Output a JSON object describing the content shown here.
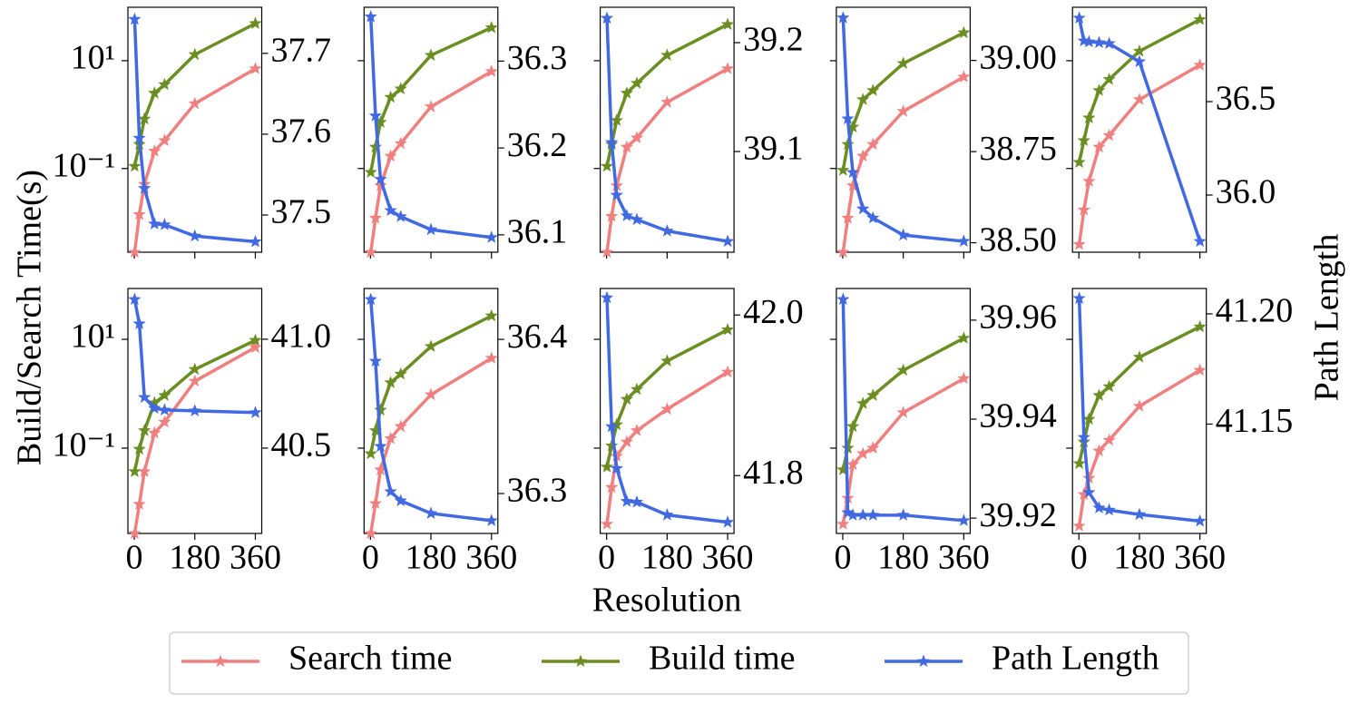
{
  "figure": {
    "xlabel": "Resolution",
    "ylabel": "Build/Search Time(s)",
    "y2label": "Path Length"
  },
  "chart_data": [
    {
      "type": "line",
      "x": [
        1,
        15,
        30,
        60,
        90,
        180,
        360
      ],
      "xlim": [
        -19,
        379
      ],
      "xticks": [
        0,
        180,
        360
      ],
      "yscale": "log",
      "ylim": [
        0.0028,
        98
      ],
      "yticks": [
        {
          "value": 0.1,
          "label": "10⁻¹"
        },
        {
          "value": 10,
          "label": "10¹"
        }
      ],
      "y2lim": [
        37.454,
        37.757
      ],
      "y2ticks": [
        37.5,
        37.6,
        37.7
      ],
      "series": [
        {
          "name": "Search time",
          "color": "#f08080",
          "values": [
            0.0028,
            0.014,
            0.051,
            0.21,
            0.33,
            1.6,
            7.1
          ]
        },
        {
          "name": "Build time",
          "color": "#6b8e23",
          "values": [
            0.11,
            0.28,
            0.83,
            2.5,
            3.6,
            13,
            49
          ]
        },
        {
          "name": "Path Length",
          "color": "#4169e1",
          "axis": "y2",
          "values": [
            37.742,
            37.595,
            37.533,
            37.489,
            37.488,
            37.474,
            37.467
          ]
        }
      ]
    },
    {
      "type": "line",
      "x": [
        1,
        15,
        30,
        60,
        90,
        180,
        360
      ],
      "xlim": [
        -19,
        379
      ],
      "xticks": [
        0,
        180,
        360
      ],
      "yscale": "log",
      "ylim": [
        0.0028,
        98
      ],
      "yticks": [
        0.1,
        10
      ],
      "y2lim": [
        36.08,
        36.362
      ],
      "y2ticks": [
        36.1,
        36.2,
        36.3
      ],
      "series": [
        {
          "name": "Search time",
          "color": "#f08080",
          "values": [
            0.0028,
            0.012,
            0.048,
            0.17,
            0.29,
            1.4,
            6.3
          ]
        },
        {
          "name": "Build time",
          "color": "#6b8e23",
          "values": [
            0.085,
            0.25,
            0.72,
            2.1,
            3.0,
            12.6,
            41
          ]
        },
        {
          "name": "Path Length",
          "color": "#4169e1",
          "axis": "y2",
          "values": [
            36.351,
            36.237,
            36.164,
            36.128,
            36.121,
            36.106,
            36.097
          ]
        }
      ]
    },
    {
      "type": "line",
      "x": [
        1,
        15,
        30,
        60,
        90,
        180,
        360
      ],
      "xlim": [
        -19,
        379
      ],
      "xticks": [
        0,
        180,
        360
      ],
      "yscale": "log",
      "ylim": [
        0.0028,
        98
      ],
      "yticks": [
        0.1,
        10
      ],
      "y2lim": [
        39.0075,
        39.2325
      ],
      "y2ticks": [
        39.1,
        39.2
      ],
      "series": [
        {
          "name": "Search time",
          "color": "#f08080",
          "values": [
            0.0028,
            0.013,
            0.048,
            0.25,
            0.37,
            1.7,
            7.1
          ]
        },
        {
          "name": "Build time",
          "color": "#6b8e23",
          "values": [
            0.11,
            0.28,
            0.78,
            2.5,
            3.8,
            12.6,
            47
          ]
        },
        {
          "name": "Path Length",
          "color": "#4169e1",
          "axis": "y2",
          "values": [
            39.2225,
            39.1083,
            39.06,
            39.041,
            39.0375,
            39.027,
            39.0175
          ]
        }
      ]
    },
    {
      "type": "line",
      "x": [
        1,
        15,
        30,
        60,
        90,
        180,
        360
      ],
      "xlim": [
        -19,
        379
      ],
      "xticks": [
        0,
        180,
        360
      ],
      "yscale": "log",
      "ylim": [
        0.0028,
        98
      ],
      "yticks": [
        0.1,
        10
      ],
      "y2lim": [
        38.474,
        39.146
      ],
      "y2ticks": [
        {
          "value": 38.5,
          "label": "38.50"
        },
        38.75,
        {
          "value": 39,
          "label": "39.00"
        }
      ],
      "series": [
        {
          "name": "Search time",
          "color": "#f08080",
          "values": [
            0.0028,
            0.012,
            0.048,
            0.17,
            0.28,
            1.15,
            5.0
          ]
        },
        {
          "name": "Build time",
          "color": "#6b8e23",
          "values": [
            0.093,
            0.28,
            0.59,
            1.9,
            2.8,
            8.9,
            33
          ]
        },
        {
          "name": "Path Length",
          "color": "#4169e1",
          "axis": "y2",
          "values": [
            39.117,
            38.84,
            38.693,
            38.593,
            38.568,
            38.521,
            38.504
          ]
        }
      ]
    },
    {
      "type": "line",
      "x": [
        1,
        15,
        30,
        60,
        90,
        180,
        360
      ],
      "xlim": [
        -19,
        379
      ],
      "xticks": [
        0,
        180,
        360
      ],
      "yscale": "log",
      "ylim": [
        0.0028,
        98
      ],
      "yticks": [
        0.1,
        10
      ],
      "y2lim": [
        35.694,
        37.005
      ],
      "y2ticks": [
        {
          "value": 36,
          "label": "36.0"
        },
        36.5
      ],
      "series": [
        {
          "name": "Search time",
          "color": "#f08080",
          "values": [
            0.0039,
            0.017,
            0.058,
            0.25,
            0.41,
            1.9,
            8.3
          ]
        },
        {
          "name": "Build time",
          "color": "#6b8e23",
          "values": [
            0.13,
            0.33,
            0.87,
            2.8,
            4.5,
            15,
            58
          ]
        },
        {
          "name": "Path Length",
          "color": "#4169e1",
          "axis": "y2",
          "values": [
            36.947,
            36.825,
            36.82,
            36.816,
            36.811,
            36.714,
            35.752
          ]
        }
      ]
    },
    {
      "type": "line",
      "x": [
        1,
        15,
        30,
        60,
        90,
        180,
        360
      ],
      "xlim": [
        -19,
        379
      ],
      "xticks": [
        0,
        180,
        360
      ],
      "yscale": "log",
      "ylim": [
        0.0027,
        86
      ],
      "yticks": [
        {
          "value": 0.1,
          "label": "10⁻¹"
        },
        {
          "value": 10,
          "label": "10¹"
        }
      ],
      "y2lim": [
        40.108,
        41.233
      ],
      "y2ticks": [
        40.5,
        {
          "value": 41,
          "label": "41.0"
        }
      ],
      "series": [
        {
          "name": "Search time",
          "color": "#f08080",
          "values": [
            0.0027,
            0.0093,
            0.037,
            0.19,
            0.3,
            1.7,
            7.1
          ]
        },
        {
          "name": "Build time",
          "color": "#6b8e23",
          "values": [
            0.037,
            0.096,
            0.21,
            0.68,
            0.93,
            2.8,
            9.6
          ]
        },
        {
          "name": "Path Length",
          "color": "#4169e1",
          "axis": "y2",
          "values": [
            41.183,
            41.071,
            40.733,
            40.683,
            40.675,
            40.671,
            40.663
          ]
        }
      ]
    },
    {
      "type": "line",
      "x": [
        1,
        15,
        30,
        60,
        90,
        180,
        360
      ],
      "xlim": [
        -19,
        379
      ],
      "xticks": [
        0,
        180,
        360
      ],
      "yscale": "log",
      "ylim": [
        0.0027,
        86
      ],
      "yticks": [
        0.1,
        10
      ],
      "y2lim": [
        36.2741,
        36.433
      ],
      "y2ticks": [
        36.3,
        36.4
      ],
      "series": [
        {
          "name": "Search time",
          "color": "#f08080",
          "values": [
            0.0027,
            0.0096,
            0.04,
            0.15,
            0.25,
            0.96,
            4.5
          ]
        },
        {
          "name": "Build time",
          "color": "#6b8e23",
          "values": [
            0.079,
            0.21,
            0.5,
            1.6,
            2.3,
            7.4,
            27
          ]
        },
        {
          "name": "Path Length",
          "color": "#4169e1",
          "axis": "y2",
          "values": [
            36.4259,
            36.3859,
            36.3306,
            36.3012,
            36.2953,
            36.2871,
            36.2824
          ]
        }
      ]
    },
    {
      "type": "line",
      "x": [
        1,
        15,
        30,
        60,
        90,
        180,
        360
      ],
      "xlim": [
        -19,
        379
      ],
      "xticks": [
        0,
        180,
        360
      ],
      "yscale": "log",
      "ylim": [
        0.0027,
        86
      ],
      "yticks": [
        0.1,
        10
      ],
      "y2lim": [
        41.728,
        42.033
      ],
      "y2ticks": [
        41.8,
        {
          "value": 42,
          "label": "42.0"
        }
      ],
      "series": [
        {
          "name": "Search time",
          "color": "#f08080",
          "values": [
            0.004,
            0.019,
            0.071,
            0.13,
            0.21,
            0.52,
            2.5
          ]
        },
        {
          "name": "Build time",
          "color": "#6b8e23",
          "values": [
            0.045,
            0.11,
            0.27,
            0.79,
            1.2,
            4.0,
            15
          ]
        },
        {
          "name": "Path Length",
          "color": "#4169e1",
          "axis": "y2",
          "values": [
            42.0215,
            41.861,
            41.809,
            41.768,
            41.767,
            41.751,
            41.742
          ]
        }
      ]
    },
    {
      "type": "line",
      "x": [
        1,
        15,
        30,
        60,
        90,
        180,
        360
      ],
      "xlim": [
        -19,
        379
      ],
      "xticks": [
        0,
        180,
        360
      ],
      "yscale": "log",
      "ylim": [
        0.0027,
        86
      ],
      "yticks": [
        0.1,
        10
      ],
      "y2lim": [
        39.9169,
        39.9664
      ],
      "y2ticks": [
        39.92,
        39.94,
        39.96
      ],
      "series": [
        {
          "name": "Search time",
          "color": "#f08080",
          "values": [
            0.004,
            0.012,
            0.05,
            0.079,
            0.1,
            0.45,
            1.9
          ]
        },
        {
          "name": "Build time",
          "color": "#6b8e23",
          "values": [
            0.04,
            0.1,
            0.25,
            0.66,
            0.93,
            2.7,
            10.5
          ]
        },
        {
          "name": "Path Length",
          "color": "#4169e1",
          "axis": "y2",
          "values": [
            39.9642,
            39.9211,
            39.9206,
            39.9206,
            39.9206,
            39.9206,
            39.9195
          ]
        }
      ]
    },
    {
      "type": "line",
      "x": [
        1,
        15,
        30,
        60,
        90,
        180,
        360
      ],
      "xlim": [
        -19,
        379
      ],
      "xticks": [
        0,
        180,
        360
      ],
      "yscale": "log",
      "ylim": [
        0.0027,
        86
      ],
      "yticks": [
        0.1,
        10
      ],
      "y2lim": [
        41.1004,
        41.2115
      ],
      "y2ticks": [
        41.15,
        {
          "value": 41.2,
          "label": "41.20"
        }
      ],
      "series": [
        {
          "name": "Search time",
          "color": "#f08080",
          "values": [
            0.0037,
            0.014,
            0.028,
            0.089,
            0.14,
            0.59,
            2.7
          ]
        },
        {
          "name": "Build time",
          "color": "#6b8e23",
          "values": [
            0.052,
            0.13,
            0.34,
            0.93,
            1.35,
            4.7,
            17
          ]
        },
        {
          "name": "Path Length",
          "color": "#4169e1",
          "axis": "y2",
          "values": [
            41.207,
            41.144,
            41.119,
            41.112,
            41.111,
            41.109,
            41.106
          ]
        }
      ]
    }
  ]
}
